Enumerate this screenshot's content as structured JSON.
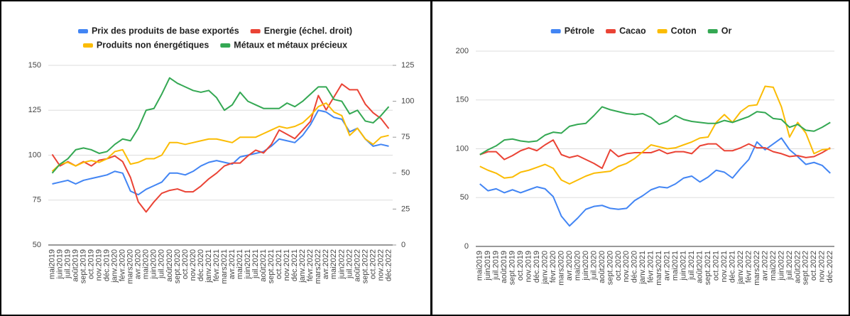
{
  "chart_data": [
    {
      "type": "line",
      "categories": [
        "mai2019",
        "juin2019",
        "juil.2019",
        "août2019",
        "sept.2019",
        "oct.2019",
        "nov.2019",
        "déc.2019",
        "janv.2020",
        "févr.2020",
        "mars2020",
        "avr.2020",
        "mai2020",
        "juin2020",
        "juil.2020",
        "août2020",
        "sept.2020",
        "oct.2020",
        "nov.2020",
        "déc.2020",
        "janv.2021",
        "févr.2021",
        "mars2021",
        "avr.2021",
        "mai2021",
        "juin2021",
        "juil.2021",
        "août2021",
        "sept.2021",
        "oct.2021",
        "nov.2021",
        "déc.2021",
        "janv.2022",
        "févr.2022",
        "mars2022",
        "avr.2022",
        "mai2022",
        "juin2022",
        "juil.2022",
        "août2022",
        "sept.2022",
        "oct.2022",
        "nov.2022",
        "déc.2022"
      ],
      "series": [
        {
          "name": "Prix des produits de base exportés",
          "color": "#4285f4",
          "values": [
            84,
            85,
            86,
            84,
            86,
            87,
            88,
            89,
            91,
            90,
            80,
            78,
            81,
            83,
            85,
            90,
            90,
            89,
            91,
            94,
            96,
            97,
            96,
            95,
            99,
            100,
            101,
            102,
            105,
            109,
            108,
            107,
            111,
            117,
            125,
            124,
            121,
            120,
            113,
            115,
            109,
            105,
            106,
            105
          ]
        },
        {
          "name": "Energie (échel. droit)",
          "color": "#ea4335",
          "axis": "y2",
          "values": [
            63,
            55,
            58,
            55,
            58,
            55,
            59,
            60,
            62,
            58,
            47,
            30,
            23,
            30,
            36,
            38,
            39,
            37,
            37,
            41,
            46,
            50,
            55,
            57,
            57,
            62,
            66,
            64,
            70,
            80,
            77,
            74,
            80,
            86,
            104,
            94,
            103,
            112,
            108,
            108,
            98,
            92,
            88,
            81
          ]
        },
        {
          "name": "Produits  non énergétiques",
          "color": "#fbbc04",
          "values": [
            91,
            95,
            96,
            94,
            96,
            97,
            96,
            98,
            102,
            103,
            95,
            96,
            98,
            98,
            100,
            107,
            107,
            106,
            107,
            108,
            109,
            109,
            108,
            107,
            110,
            110,
            110,
            112,
            114,
            116,
            115,
            116,
            118,
            122,
            127,
            129,
            124,
            122,
            111,
            115,
            109,
            106,
            110,
            111
          ]
        },
        {
          "name": "Métaux et métaux précieux",
          "color": "#34a853",
          "values": [
            90,
            95,
            98,
            103,
            104,
            103,
            101,
            102,
            106,
            109,
            108,
            115,
            125,
            126,
            134,
            143,
            140,
            138,
            136,
            135,
            136,
            132,
            125,
            128,
            135,
            130,
            128,
            126,
            126,
            126,
            129,
            127,
            130,
            134,
            138,
            138,
            131,
            130,
            123,
            125,
            119,
            118,
            122,
            127
          ]
        }
      ],
      "ylim": [
        50,
        150
      ],
      "yticks": [
        50,
        75,
        100,
        125,
        150
      ],
      "y2lim": [
        0,
        125
      ],
      "y2ticks": [
        0,
        25,
        50,
        75,
        100,
        125
      ],
      "grid": true,
      "legend": "top"
    },
    {
      "type": "line",
      "categories": [
        "mai2019",
        "juin2019",
        "juil.2019",
        "août2019",
        "sept.2019",
        "oct.2019",
        "nov.2019",
        "déc.2019",
        "janv.2020",
        "févr.2020",
        "mars2020",
        "avr.2020",
        "mai2020",
        "juin2020",
        "juil.2020",
        "août2020",
        "sept.2020",
        "oct.2020",
        "nov.2020",
        "déc.2020",
        "janv.2021",
        "févr.2021",
        "mars2021",
        "avr.2021",
        "mai2021",
        "juin2021",
        "juil.2021",
        "août2021",
        "sept.2021",
        "oct.2021",
        "nov.2021",
        "déc.2021",
        "janv.2022",
        "févr.2022",
        "mars2022",
        "avr.2022",
        "mai2022",
        "juin2022",
        "juil.2022",
        "août2022",
        "sept.2022",
        "oct.2022",
        "nov.2022",
        "déc.2022"
      ],
      "series": [
        {
          "name": "Pétrole",
          "color": "#4285f4",
          "values": [
            64,
            57,
            59,
            55,
            58,
            55,
            58,
            61,
            59,
            51,
            31,
            21,
            29,
            38,
            41,
            42,
            39,
            38,
            39,
            47,
            52,
            58,
            61,
            60,
            64,
            70,
            72,
            66,
            71,
            78,
            76,
            70,
            80,
            89,
            107,
            99,
            105,
            111,
            99,
            92,
            84,
            86,
            83,
            75
          ]
        },
        {
          "name": "Cacao",
          "color": "#ea4335",
          "values": [
            94,
            97,
            97,
            89,
            93,
            98,
            101,
            98,
            104,
            109,
            94,
            91,
            93,
            89,
            85,
            80,
            99,
            92,
            95,
            96,
            96,
            96,
            99,
            95,
            97,
            97,
            95,
            103,
            105,
            105,
            98,
            98,
            101,
            105,
            101,
            101,
            97,
            95,
            92,
            93,
            91,
            92,
            96,
            101
          ]
        },
        {
          "name": "Coton",
          "color": "#fbbc04",
          "values": [
            82,
            78,
            75,
            70,
            71,
            76,
            78,
            81,
            84,
            80,
            68,
            64,
            68,
            72,
            75,
            76,
            77,
            82,
            85,
            90,
            97,
            104,
            102,
            100,
            101,
            104,
            107,
            111,
            112,
            127,
            135,
            127,
            138,
            144,
            145,
            164,
            163,
            143,
            112,
            127,
            116,
            95,
            99,
            100
          ]
        },
        {
          "name": "Or",
          "color": "#34a853",
          "values": [
            94,
            99,
            103,
            109,
            110,
            108,
            107,
            108,
            114,
            117,
            116,
            123,
            125,
            126,
            134,
            143,
            140,
            138,
            136,
            135,
            136,
            132,
            125,
            128,
            134,
            130,
            128,
            127,
            126,
            126,
            129,
            127,
            130,
            133,
            138,
            137,
            131,
            130,
            122,
            125,
            119,
            118,
            122,
            127
          ]
        }
      ],
      "ylim": [
        0,
        200
      ],
      "yticks": [
        0,
        50,
        100,
        150,
        200
      ],
      "grid": true,
      "legend": "top"
    }
  ]
}
